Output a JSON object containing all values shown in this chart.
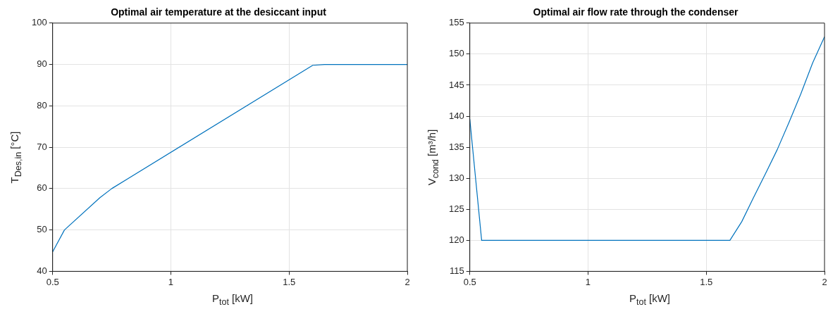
{
  "chart_data": [
    {
      "type": "line",
      "title": "Optimal air temperature at the desiccant input",
      "xlabel": "P$_{tot}$ [kW]",
      "ylabel": "T$_{Des,in}$ [°C]",
      "series": [
        {
          "color": "#0072bd",
          "x": [
            0.5,
            0.55,
            0.7,
            0.75,
            1.6,
            1.65,
            2
          ],
          "values": [
            44.7,
            50,
            57.8,
            60,
            89.8,
            90,
            90
          ]
        }
      ],
      "xlim": [
        0.5,
        2
      ],
      "xticks": [
        0.5,
        1,
        1.5,
        2
      ],
      "ylim": [
        40,
        100
      ],
      "yticks": [
        40,
        50,
        60,
        70,
        80,
        90,
        100
      ],
      "grid": true,
      "legend": false
    },
    {
      "type": "line",
      "title": "Optimal air flow rate through the condenser",
      "xlabel": "P$_{tot}$ [kW]",
      "ylabel": "V$_{cond}$ [m³/h]",
      "series": [
        {
          "color": "#0072bd",
          "x": [
            0.5,
            0.55,
            1.6,
            1.65,
            1.7,
            1.75,
            1.8,
            1.85,
            1.9,
            1.95,
            2
          ],
          "values": [
            139.5,
            120,
            120,
            123,
            126.9,
            130.7,
            134.6,
            139,
            143.6,
            148.6,
            152.8
          ]
        }
      ],
      "xlim": [
        0.5,
        2
      ],
      "xticks": [
        0.5,
        1,
        1.5,
        2
      ],
      "ylim": [
        115,
        155
      ],
      "yticks": [
        115,
        120,
        125,
        130,
        135,
        140,
        145,
        150,
        155
      ],
      "grid": true,
      "legend": false
    }
  ]
}
